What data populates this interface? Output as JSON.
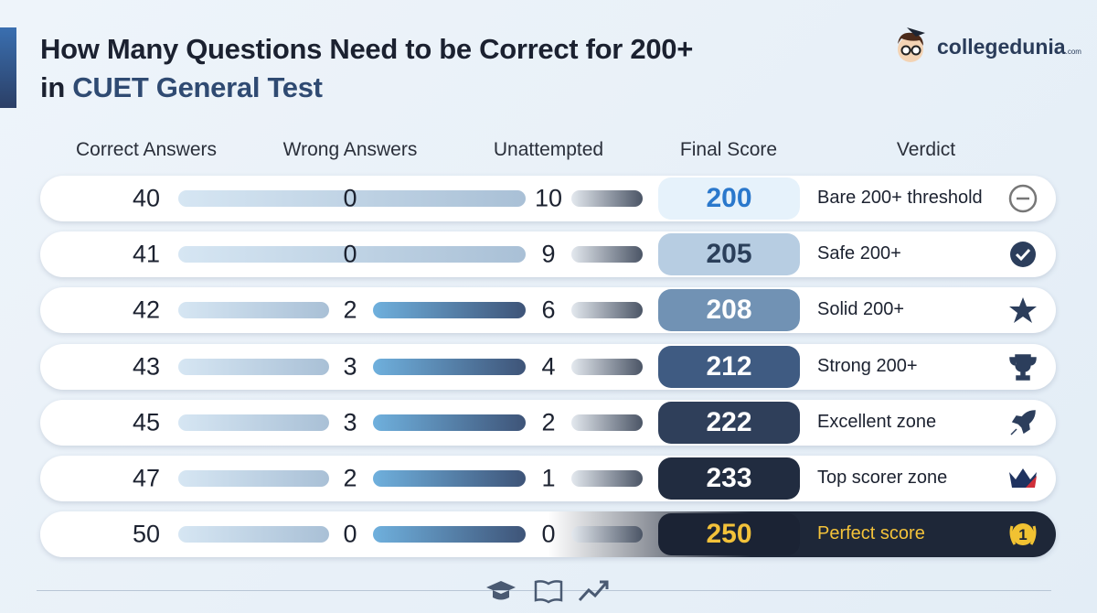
{
  "header": {
    "title_line1": "How Many Questions Need to be Correct for 200+",
    "title_line2_prefix": "in",
    "title_line2_highlight": "CUET General Test",
    "brand": "collegedunia",
    "brand_domain": ".com"
  },
  "table": {
    "columns": [
      "Correct Answers",
      "Wrong Answers",
      "Unattempted",
      "Final Score",
      "Verdict"
    ],
    "rows": [
      [
        40,
        0,
        10,
        200,
        "Bare 200+ threshold"
      ],
      [
        41,
        0,
        9,
        205,
        "Safe 200+"
      ],
      [
        42,
        2,
        6,
        208,
        "Solid 200+"
      ],
      [
        43,
        3,
        4,
        212,
        "Strong 200+"
      ],
      [
        45,
        3,
        2,
        222,
        "Excellent zone"
      ],
      [
        47,
        2,
        1,
        233,
        "Top scorer zone"
      ],
      [
        50,
        0,
        0,
        250,
        "Perfect score"
      ]
    ]
  }
}
